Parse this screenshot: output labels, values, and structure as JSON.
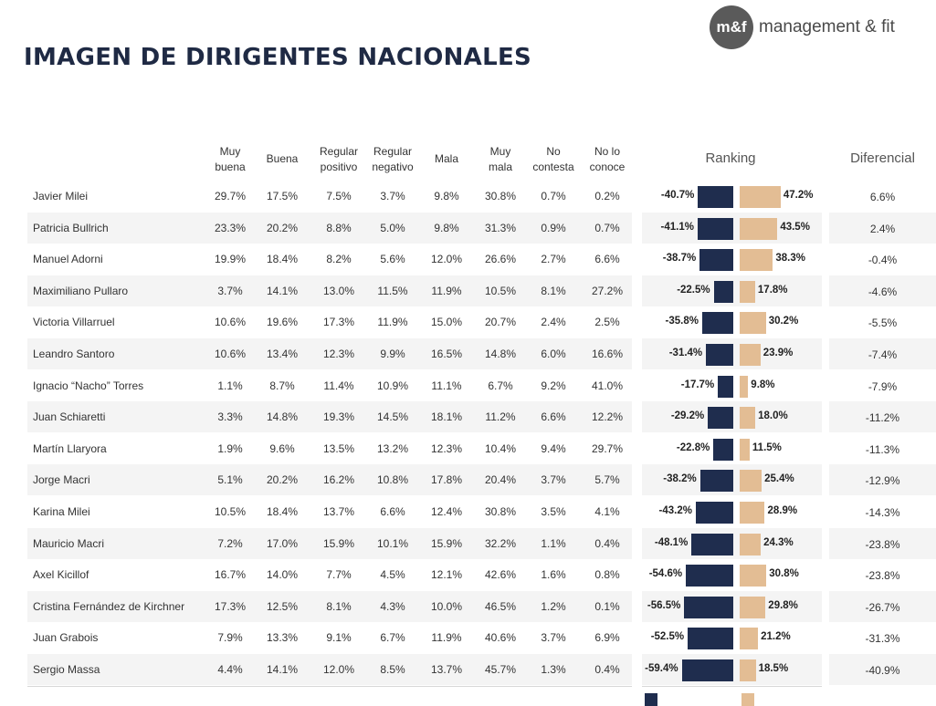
{
  "title": "IMAGEN DE DIRIGENTES NACIONALES",
  "logo": {
    "mark": "m&f",
    "text": "management & fit"
  },
  "columns": [
    {
      "l1": "Muy",
      "l2": "buena"
    },
    {
      "l1": "Buena",
      "l2": ""
    },
    {
      "l1": "Regular",
      "l2": "positivo"
    },
    {
      "l1": "Regular",
      "l2": "negativo"
    },
    {
      "l1": "Mala",
      "l2": ""
    },
    {
      "l1": "Muy",
      "l2": "mala"
    },
    {
      "l1": "No",
      "l2": "contesta"
    },
    {
      "l1": "No lo",
      "l2": "conoce"
    }
  ],
  "ranking_label": "Ranking",
  "diferencial_label": "Diferencial",
  "colors": {
    "negative": "#1f2d4e",
    "positive": "#e3bd94"
  },
  "chart_data": {
    "type": "table",
    "rows": [
      {
        "name": "Javier Milei",
        "values": [
          "29.7%",
          "17.5%",
          "7.5%",
          "3.7%",
          "9.8%",
          "30.8%",
          "0.7%",
          "0.2%"
        ],
        "neg": -40.7,
        "pos": 47.2,
        "neg_label": "-40.7%",
        "pos_label": "47.2%",
        "diff": "6.6%"
      },
      {
        "name": "Patricia Bullrich",
        "values": [
          "23.3%",
          "20.2%",
          "8.8%",
          "5.0%",
          "9.8%",
          "31.3%",
          "0.9%",
          "0.7%"
        ],
        "neg": -41.1,
        "pos": 43.5,
        "neg_label": "-41.1%",
        "pos_label": "43.5%",
        "diff": "2.4%"
      },
      {
        "name": "Manuel Adorni",
        "values": [
          "19.9%",
          "18.4%",
          "8.2%",
          "5.6%",
          "12.0%",
          "26.6%",
          "2.7%",
          "6.6%"
        ],
        "neg": -38.7,
        "pos": 38.3,
        "neg_label": "-38.7%",
        "pos_label": "38.3%",
        "diff": "-0.4%"
      },
      {
        "name": "Maximiliano Pullaro",
        "values": [
          "3.7%",
          "14.1%",
          "13.0%",
          "11.5%",
          "11.9%",
          "10.5%",
          "8.1%",
          "27.2%"
        ],
        "neg": -22.5,
        "pos": 17.8,
        "neg_label": "-22.5%",
        "pos_label": "17.8%",
        "diff": "-4.6%"
      },
      {
        "name": "Victoria Villarruel",
        "values": [
          "10.6%",
          "19.6%",
          "17.3%",
          "11.9%",
          "15.0%",
          "20.7%",
          "2.4%",
          "2.5%"
        ],
        "neg": -35.8,
        "pos": 30.2,
        "neg_label": "-35.8%",
        "pos_label": "30.2%",
        "diff": "-5.5%"
      },
      {
        "name": "Leandro Santoro",
        "values": [
          "10.6%",
          "13.4%",
          "12.3%",
          "9.9%",
          "16.5%",
          "14.8%",
          "6.0%",
          "16.6%"
        ],
        "neg": -31.4,
        "pos": 23.9,
        "neg_label": "-31.4%",
        "pos_label": "23.9%",
        "diff": "-7.4%"
      },
      {
        "name": "Ignacio “Nacho” Torres",
        "values": [
          "1.1%",
          "8.7%",
          "11.4%",
          "10.9%",
          "11.1%",
          "6.7%",
          "9.2%",
          "41.0%"
        ],
        "neg": -17.7,
        "pos": 9.8,
        "neg_label": "-17.7%",
        "pos_label": "9.8%",
        "diff": "-7.9%"
      },
      {
        "name": "Juan Schiaretti",
        "values": [
          "3.3%",
          "14.8%",
          "19.3%",
          "14.5%",
          "18.1%",
          "11.2%",
          "6.6%",
          "12.2%"
        ],
        "neg": -29.2,
        "pos": 18.0,
        "neg_label": "-29.2%",
        "pos_label": "18.0%",
        "diff": "-11.2%"
      },
      {
        "name": "Martín Llaryora",
        "values": [
          "1.9%",
          "9.6%",
          "13.5%",
          "13.2%",
          "12.3%",
          "10.4%",
          "9.4%",
          "29.7%"
        ],
        "neg": -22.8,
        "pos": 11.5,
        "neg_label": "-22.8%",
        "pos_label": "11.5%",
        "diff": "-11.3%"
      },
      {
        "name": "Jorge Macri",
        "values": [
          "5.1%",
          "20.2%",
          "16.2%",
          "10.8%",
          "17.8%",
          "20.4%",
          "3.7%",
          "5.7%"
        ],
        "neg": -38.2,
        "pos": 25.4,
        "neg_label": "-38.2%",
        "pos_label": "25.4%",
        "diff": "-12.9%"
      },
      {
        "name": "Karina Milei",
        "values": [
          "10.5%",
          "18.4%",
          "13.7%",
          "6.6%",
          "12.4%",
          "30.8%",
          "3.5%",
          "4.1%"
        ],
        "neg": -43.2,
        "pos": 28.9,
        "neg_label": "-43.2%",
        "pos_label": "28.9%",
        "diff": "-14.3%"
      },
      {
        "name": "Mauricio Macri",
        "values": [
          "7.2%",
          "17.0%",
          "15.9%",
          "10.1%",
          "15.9%",
          "32.2%",
          "1.1%",
          "0.4%"
        ],
        "neg": -48.1,
        "pos": 24.3,
        "neg_label": "-48.1%",
        "pos_label": "24.3%",
        "diff": "-23.8%"
      },
      {
        "name": "Axel Kicillof",
        "values": [
          "16.7%",
          "14.0%",
          "7.7%",
          "4.5%",
          "12.1%",
          "42.6%",
          "1.6%",
          "0.8%"
        ],
        "neg": -54.6,
        "pos": 30.8,
        "neg_label": "-54.6%",
        "pos_label": "30.8%",
        "diff": "-23.8%"
      },
      {
        "name": "Cristina Fernández de Kirchner",
        "values": [
          "17.3%",
          "12.5%",
          "8.1%",
          "4.3%",
          "10.0%",
          "46.5%",
          "1.2%",
          "0.1%"
        ],
        "neg": -56.5,
        "pos": 29.8,
        "neg_label": "-56.5%",
        "pos_label": "29.8%",
        "diff": "-26.7%"
      },
      {
        "name": "Juan Grabois",
        "values": [
          "7.9%",
          "13.3%",
          "9.1%",
          "6.7%",
          "11.9%",
          "40.6%",
          "3.7%",
          "6.9%"
        ],
        "neg": -52.5,
        "pos": 21.2,
        "neg_label": "-52.5%",
        "pos_label": "21.2%",
        "diff": "-31.3%"
      },
      {
        "name": "Sergio Massa",
        "values": [
          "4.4%",
          "14.1%",
          "12.0%",
          "8.5%",
          "13.7%",
          "45.7%",
          "1.3%",
          "0.4%"
        ],
        "neg": -59.4,
        "pos": 18.5,
        "neg_label": "-59.4%",
        "pos_label": "18.5%",
        "diff": "-40.9%"
      }
    ]
  }
}
